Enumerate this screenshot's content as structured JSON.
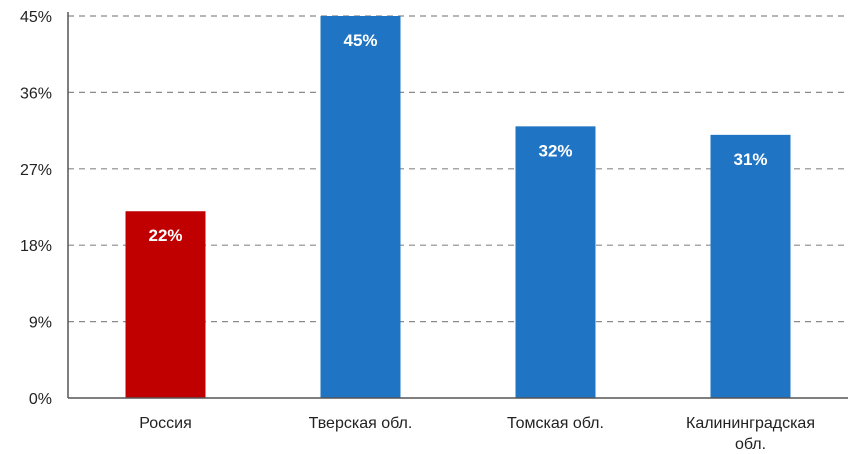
{
  "chart_data": {
    "type": "bar",
    "categories": [
      [
        "Россия"
      ],
      [
        "Тверская обл."
      ],
      [
        "Томская обл."
      ],
      [
        "Калининградская",
        "обл."
      ]
    ],
    "values": [
      22,
      45,
      32,
      31
    ],
    "data_labels": [
      "22%",
      "45%",
      "32%",
      "31%"
    ],
    "bar_colors": [
      "#c00000",
      "#1f74c4",
      "#1f74c4",
      "#1f74c4"
    ],
    "yticks": [
      "0%",
      "9%",
      "18%",
      "27%",
      "36%",
      "45%"
    ],
    "ytick_values": [
      0,
      9,
      18,
      27,
      36,
      45
    ],
    "ylim": [
      0,
      45
    ],
    "grid": true,
    "legend": false,
    "title": "",
    "xlabel": "",
    "ylabel": ""
  }
}
